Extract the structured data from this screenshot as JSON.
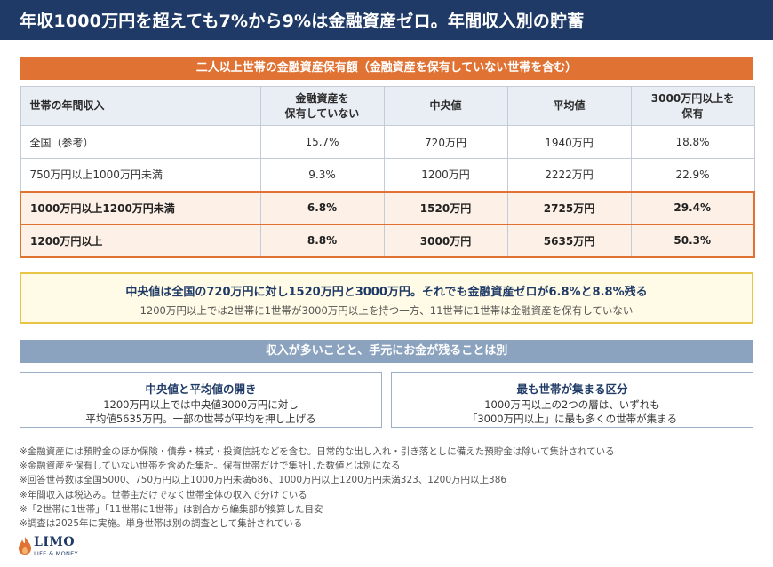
{
  "title": "年収1000万円を超えても7%から9%は金融資産ゼロ。年間収入別の貯蓄",
  "table_title": "二人以上世帯の金融資産保有額（金融資産を保有していない世帯を含む）",
  "chart_data": {
    "type": "table",
    "columns": [
      "世帯の年間収入",
      "金融資産を\n保有していない",
      "中央値",
      "平均値",
      "3000万円以上を\n保有"
    ],
    "rows": [
      {
        "label": "全国（参考）",
        "no_assets": "15.7%",
        "median": "720万円",
        "mean": "1940万円",
        "over_30m": "18.8%",
        "highlight": false
      },
      {
        "label": "750万円以上1000万円未満",
        "no_assets": "9.3%",
        "median": "1200万円",
        "mean": "2222万円",
        "over_30m": "22.9%",
        "highlight": false
      },
      {
        "label": "1000万円以上1200万円未満",
        "no_assets": "6.8%",
        "median": "1520万円",
        "mean": "2725万円",
        "over_30m": "29.4%",
        "highlight": true
      },
      {
        "label": "1200万円以上",
        "no_assets": "8.8%",
        "median": "3000万円",
        "mean": "5635万円",
        "over_30m": "50.3%",
        "highlight": true
      }
    ]
  },
  "highlight_note": {
    "main": "中央値は全国の720万円に対し1520万円と3000万円。それでも金融資産ゼロが6.8%と8.8%残る",
    "sub": "1200万円以上では2世帯に1世帯が3000万円以上を持つ一方、11世帯に1世帯は金融資産を保有していない"
  },
  "band_text": "収入が多いことと、手元にお金が残ることは別",
  "cards": [
    {
      "title": "中央値と平均値の開き",
      "line1": "1200万円以上では中央値3000万円に対し",
      "line2": "平均値5635万円。一部の世帯が平均を押し上げる"
    },
    {
      "title": "最も世帯が集まる区分",
      "line1": "1000万円以上の2つの層は、いずれも",
      "line2": "「3000万円以上」に最も多くの世帯が集まる"
    }
  ],
  "footnotes": [
    "※金融資産には預貯金のほか保険・債券・株式・投資信託などを含む。日常的な出し入れ・引き落としに備えた預貯金は除いて集計されている",
    "※金融資産を保有していない世帯を含めた集計。保有世帯だけで集計した数値とは別になる",
    "※回答世帯数は全国5000、750万円以上1000万円未満686、1000万円以上1200万円未満323、1200万円以上386",
    "※年間収入は税込み。世帯主だけでなく世帯全体の収入で分けている",
    "※「2世帯に1世帯」「11世帯に1世帯」は割合から編集部が換算した目安",
    "※調査は2025年に実施。単身世帯は別の調査として集計されている"
  ],
  "logo": {
    "name": "LIMO",
    "tagline": "LIFE & MONEY"
  },
  "colors": {
    "navy": "#1f3a66",
    "orange": "#e07233",
    "yellow_border": "#e8c547",
    "band": "#8ca3bf"
  }
}
